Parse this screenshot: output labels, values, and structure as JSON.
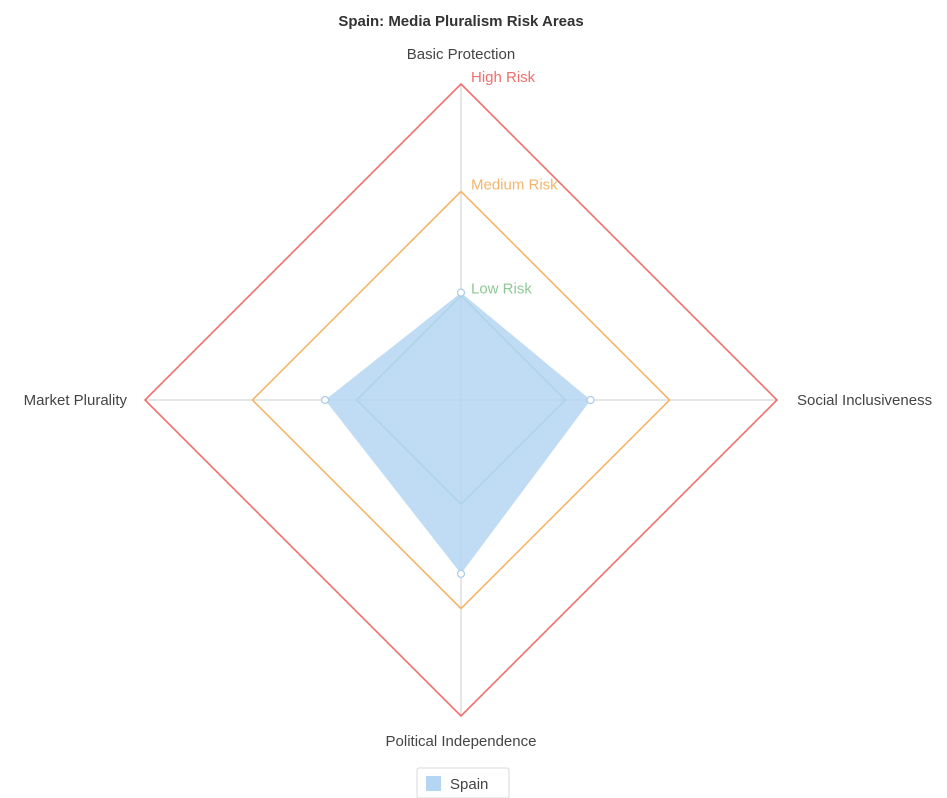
{
  "chart_data": {
    "type": "radar",
    "title": "Spain: Media Pluralism Risk Areas",
    "axes": [
      "Basic Protection",
      "Social Inclusiveness",
      "Political Independence",
      "Market Plurality"
    ],
    "rlim": [
      0,
      100
    ],
    "risk_bands": [
      {
        "label": "Low Risk",
        "value": 33,
        "color": "#8fc897"
      },
      {
        "label": "Medium Risk",
        "value": 66,
        "color": "#f3b56a"
      },
      {
        "label": "High Risk",
        "value": 100,
        "color": "#ef6e6e"
      }
    ],
    "series": [
      {
        "name": "Spain",
        "values": [
          34,
          41,
          55,
          43
        ],
        "color": "#b5d6f2"
      }
    ],
    "legend_position": "bottom"
  }
}
